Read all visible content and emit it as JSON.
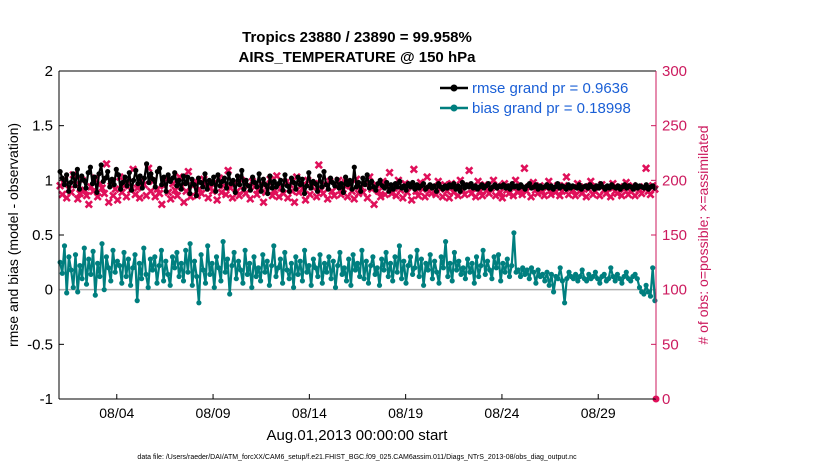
{
  "chart_data": {
    "type": "line",
    "title": "Tropics 23880 / 23890 = 99.958%",
    "subtitle": "AIRS_TEMPERATURE @ 150 hPa",
    "xlabel": "Aug.01,2013 00:00:00 start",
    "ylabel": "rmse and bias (model - observation)",
    "y2label": "# of obs: o=possible; ×=assimilated",
    "footnote": "data file: /Users/raeder/DAI/ATM_forcXX/CAM6_setup/f.e21.FHIST_BGC.f09_025.CAM6assim.011/Diags_NTrS_2013-08/obs_diag_output.nc",
    "xlim_days": [
      1.0,
      32.0
    ],
    "x_ticks": [
      {
        "day": 4,
        "label": "08/04"
      },
      {
        "day": 9,
        "label": "08/09"
      },
      {
        "day": 14,
        "label": "08/14"
      },
      {
        "day": 19,
        "label": "08/19"
      },
      {
        "day": 24,
        "label": "08/24"
      },
      {
        "day": 29,
        "label": "08/29"
      }
    ],
    "ylim": [
      -1,
      2
    ],
    "y_ticks": [
      "-1",
      "-0.5",
      "0",
      "0.5",
      "1",
      "1.5",
      "2"
    ],
    "y2lim": [
      0,
      300
    ],
    "y2_ticks": [
      "0",
      "50",
      "100",
      "150",
      "200",
      "250",
      "300"
    ],
    "grid": false,
    "legend_position": "top-right",
    "colors": {
      "rmse": "#000000",
      "bias": "#007f7f",
      "obs": "#e0105a",
      "zero_line": "#b0b0b0",
      "right_axis": "#cc1a5e",
      "legend_text": "#1a5fd6"
    },
    "series": [
      {
        "name": "rmse grand pr = 0.9636",
        "axis": "left",
        "values": [
          1.08,
          1.02,
          0.96,
          1.05,
          0.9,
          0.98,
          1.06,
          0.95,
          1.1,
          0.92,
          1.04,
          1.0,
          0.93,
          1.07,
          1.12,
          0.97,
          1.03,
          0.89,
          1.06,
          1.14,
          0.99,
          1.02,
          1.08,
          0.94,
          1.01,
          0.96,
          1.1,
          1.05,
          0.92,
          0.98,
          1.03,
          0.95,
          1.07,
          0.91,
          1.0,
          1.09,
          0.97,
          1.04,
          0.93,
          1.02,
          1.15,
          0.98,
          1.06,
          1.01,
          0.94,
          1.08,
          1.11,
          0.96,
          1.03,
          0.9,
          1.05,
          0.99,
          1.02,
          1.07,
          0.95,
          1.0,
          0.92,
          1.04,
          0.97,
          1.03,
          0.88,
          1.01,
          0.96,
          0.86,
          1.02,
          0.98,
          0.94,
          1.06,
          0.92,
          1.0,
          0.97,
          1.03,
          0.9,
          1.05,
          0.95,
          0.99,
          1.02,
          0.93,
          1.06,
          0.97,
          1.0,
          0.89,
          1.04,
          0.96,
          1.09,
          0.92,
          1.0,
          0.95,
          0.91,
          1.03,
          0.98,
          0.94,
          1.06,
          0.9,
          1.01,
          0.96,
          0.88,
          1.04,
          0.93,
          0.99,
          0.94,
          0.97,
          1.0,
          0.91,
          1.05,
          0.95,
          0.9,
          1.02,
          0.98,
          0.92,
          1.03,
          0.96,
          1.01,
          0.88,
          0.95,
          1.07,
          0.93,
          0.99,
          0.97,
          0.9,
          1.04,
          0.94,
          1.08,
          0.96,
          0.92,
          1.02,
          0.98,
          0.95,
          1.01,
          0.93,
          0.97,
          0.89,
          1.03,
          0.96,
          1.0,
          0.92,
          1.12,
          0.94,
          0.98,
          0.9,
          1.02,
          0.96,
          1.05,
          0.93,
          0.99,
          0.94,
          0.91,
          0.97,
          1.0,
          0.95,
          0.93,
          0.98,
          0.9,
          0.96,
          0.92,
          0.97,
          0.94,
          0.99,
          0.93,
          0.95,
          0.91,
          0.97,
          0.94,
          0.98,
          0.92,
          0.96,
          0.93,
          0.95,
          0.97,
          0.92,
          0.94,
          0.96,
          0.93,
          0.95,
          0.9,
          0.97,
          0.94,
          0.92,
          0.95,
          0.93,
          0.96,
          0.94,
          0.97,
          0.92,
          0.95,
          0.9,
          0.98,
          0.93,
          0.96,
          0.94,
          0.97,
          0.93,
          0.95,
          0.92,
          0.94,
          0.96,
          0.93,
          0.95,
          0.97,
          0.92,
          0.94,
          0.96,
          0.93,
          0.95,
          0.94,
          0.96,
          0.93,
          0.95,
          0.92,
          0.97,
          0.94,
          0.95,
          0.93,
          0.96,
          0.94,
          0.92,
          0.95,
          0.97,
          0.93,
          0.94,
          0.96,
          0.92,
          0.95,
          0.93,
          0.94,
          0.96,
          0.93,
          0.95,
          0.92,
          0.94,
          0.97,
          0.93,
          0.95,
          0.94,
          0.92,
          0.96,
          0.93,
          0.95,
          0.94,
          0.93,
          0.96,
          0.92,
          0.94,
          0.95,
          0.93,
          0.96,
          0.94,
          0.92,
          0.95,
          0.93,
          0.97,
          0.94,
          0.92,
          0.95,
          0.93,
          0.96,
          0.94,
          0.93,
          0.95,
          0.92,
          0.94,
          0.96,
          0.93,
          0.95,
          0.94,
          0.92,
          0.96,
          0.93,
          0.95,
          0.94,
          0.93,
          0.96,
          0.92,
          0.94,
          0.95,
          0.93
        ]
      },
      {
        "name": "bias grand pr = 0.18998",
        "axis": "left",
        "values": [
          0.25,
          0.15,
          0.4,
          -0.03,
          0.3,
          0.18,
          0.02,
          0.32,
          -0.02,
          0.22,
          0.1,
          0.38,
          0.05,
          0.28,
          0.14,
          0.35,
          -0.05,
          0.24,
          0.12,
          0.42,
          0.0,
          0.3,
          0.2,
          0.08,
          0.36,
          0.16,
          0.26,
          0.22,
          0.06,
          0.34,
          0.12,
          0.28,
          0.04,
          0.2,
          0.32,
          -0.1,
          0.24,
          0.1,
          0.38,
          0.14,
          0.02,
          0.28,
          0.18,
          0.3,
          0.06,
          0.22,
          0.36,
          0.08,
          0.26,
          0.14,
          0.04,
          0.3,
          0.2,
          0.34,
          0.12,
          0.24,
          0.08,
          0.36,
          0.16,
          0.42,
          0.04,
          0.26,
          0.12,
          -0.12,
          0.32,
          0.18,
          0.06,
          0.4,
          0.14,
          0.24,
          0.02,
          0.3,
          0.2,
          0.08,
          0.44,
          0.16,
          0.28,
          -0.04,
          0.22,
          0.34,
          0.1,
          0.26,
          0.18,
          0.06,
          0.36,
          0.14,
          0.24,
          0.02,
          0.3,
          0.12,
          0.2,
          0.08,
          0.32,
          0.16,
          0.26,
          0.04,
          0.22,
          0.4,
          0.12,
          0.2,
          0.28,
          0.06,
          0.34,
          0.18,
          0.1,
          0.24,
          0.02,
          0.3,
          0.14,
          0.26,
          0.08,
          0.36,
          0.16,
          0.22,
          0.04,
          0.28,
          0.2,
          0.12,
          0.32,
          0.06,
          0.24,
          0.16,
          0.3,
          0.1,
          0.26,
          0.02,
          0.22,
          0.34,
          0.14,
          0.2,
          0.08,
          0.28,
          0.04,
          0.32,
          0.18,
          0.24,
          0.12,
          0.36,
          0.1,
          0.26,
          0.06,
          0.22,
          0.3,
          0.14,
          0.2,
          0.04,
          0.28,
          0.18,
          0.34,
          0.12,
          0.24,
          0.08,
          0.3,
          0.16,
          0.4,
          0.1,
          0.26,
          0.06,
          0.22,
          0.3,
          0.14,
          0.2,
          0.36,
          0.12,
          0.28,
          0.04,
          0.24,
          0.18,
          0.32,
          0.1,
          0.26,
          0.16,
          0.06,
          0.3,
          0.2,
          0.44,
          0.12,
          0.24,
          0.08,
          0.34,
          0.18,
          0.26,
          0.14,
          0.2,
          0.1,
          0.28,
          0.16,
          0.24,
          0.06,
          0.3,
          0.12,
          0.22,
          0.36,
          0.14,
          0.26,
          0.18,
          0.1,
          0.3,
          0.2,
          0.32,
          0.08,
          0.24,
          0.16,
          0.28,
          0.12,
          0.22,
          0.52,
          0.16,
          0.18,
          0.12,
          0.2,
          0.14,
          0.18,
          0.1,
          0.2,
          0.16,
          0.06,
          0.18,
          0.12,
          0.14,
          0.08,
          0.16,
          0.04,
          0.14,
          -0.02,
          0.12,
          0.1,
          0.2,
          0.08,
          -0.12,
          0.1,
          0.16,
          0.12,
          0.1,
          0.14,
          0.08,
          0.12,
          0.18,
          0.1,
          0.08,
          0.14,
          0.1,
          0.12,
          0.16,
          0.1,
          0.06,
          0.12,
          0.14,
          0.08,
          0.1,
          0.2,
          0.12,
          0.08,
          0.14,
          0.1,
          0.06,
          0.12,
          0.16,
          0.1,
          0.08,
          0.12,
          0.14,
          0.1,
          0.02,
          -0.02,
          -0.04,
          0.04,
          -0.02,
          -0.06,
          0.2,
          -0.1
        ]
      },
      {
        "name": "# of obs",
        "axis": "right",
        "marker": "x",
        "values": [
          195,
          187,
          201,
          184,
          192,
          189,
          205,
          196,
          183,
          188,
          200,
          191,
          186,
          178,
          194,
          190,
          202,
          185,
          197,
          193,
          188,
          215,
          180,
          199,
          186,
          192,
          182,
          203,
          189,
          195,
          185,
          198,
          191,
          210,
          187,
          193,
          184,
          200,
          196,
          186,
          211,
          190,
          199,
          185,
          192,
          188,
          178,
          195,
          201,
          189,
          183,
          197,
          191,
          186,
          203,
          194,
          180,
          190,
          208,
          185,
          195,
          199,
          186,
          192,
          188,
          201,
          196,
          184,
          193,
          190,
          198,
          182,
          202,
          189,
          195,
          187,
          209,
          193,
          184,
          198,
          190,
          186,
          200,
          191,
          188,
          195,
          183,
          199,
          194,
          187,
          192,
          197,
          180,
          189,
          195,
          201,
          186,
          191,
          204,
          185,
          193,
          188,
          198,
          184,
          196,
          190,
          180,
          203,
          189,
          195,
          192,
          182,
          200,
          187,
          194,
          197,
          185,
          214,
          191,
          188,
          196,
          183,
          199,
          190,
          186,
          194,
          200,
          187,
          192,
          198,
          185,
          195,
          190,
          183,
          201,
          188,
          194,
          189,
          197,
          184,
          203,
          192,
          178,
          196,
          190,
          185,
          199,
          187,
          194,
          207,
          188,
          193,
          186,
          200,
          191,
          184,
          197,
          189,
          195,
          182,
          210,
          190,
          186,
          198,
          192,
          185,
          203,
          190,
          188,
          194,
          187,
          199,
          192,
          185,
          196,
          190,
          184,
          197,
          189,
          194,
          186,
          200,
          191,
          187,
          195,
          209,
          188,
          193,
          185,
          199,
          190,
          186,
          196,
          191,
          188,
          193,
          200,
          186,
          195,
          189,
          184,
          197,
          191,
          188,
          194,
          186,
          200,
          189,
          192,
          187,
          211,
          190,
          194,
          185,
          198,
          191,
          188,
          195,
          190,
          186,
          193,
          199,
          187,
          192,
          189,
          195,
          186,
          190,
          195,
          203,
          187,
          193,
          191,
          186,
          197,
          190,
          188,
          194,
          185,
          192,
          199,
          187,
          190,
          194,
          186,
          196,
          191,
          188,
          193,
          185,
          197,
          190,
          188,
          194,
          186,
          192,
          198,
          187,
          190,
          195,
          186,
          193,
          191,
          188,
          194,
          211,
          190,
          187,
          195,
          192
        ]
      }
    ]
  }
}
